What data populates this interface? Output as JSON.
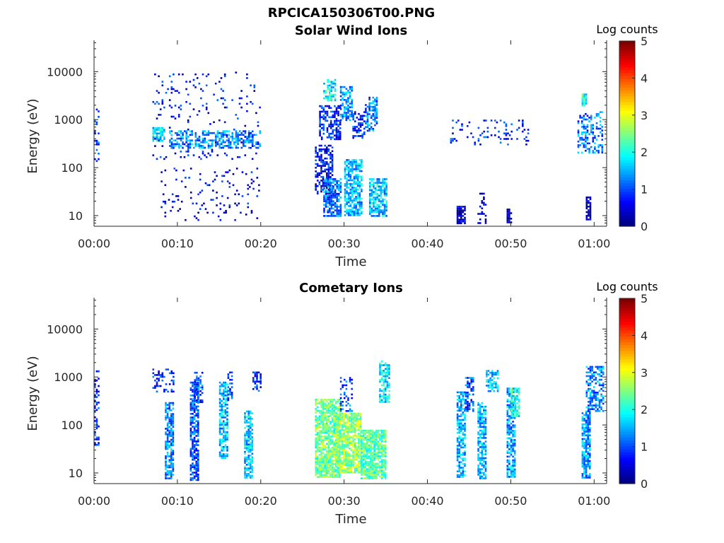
{
  "figure_title": "RPCICA150306T00.PNG",
  "chart_data": [
    {
      "type": "heatmap",
      "title": "Solar Wind Ions",
      "xlabel": "Time",
      "ylabel": "Energy (eV)",
      "x_ticks": [
        "00:00",
        "00:10",
        "00:20",
        "00:30",
        "00:40",
        "00:50",
        "01:00"
      ],
      "x_range_minutes": [
        0,
        61.5
      ],
      "y_ticks": [
        "10",
        "100",
        "1000",
        "10000"
      ],
      "y_scale": "log",
      "y_range_eV": [
        6,
        45000
      ],
      "colorbar": {
        "label": "Log counts",
        "ticks": [
          "0",
          "1",
          "2",
          "3",
          "4",
          "5"
        ],
        "range": [
          0,
          5
        ],
        "colormap": "jet"
      },
      "regions": [
        {
          "t": [
            0,
            0.6
          ],
          "e": [
            90,
            1700
          ],
          "level": 0.8,
          "density": 0.25
        },
        {
          "t": [
            7,
            8.5
          ],
          "e": [
            350,
            700
          ],
          "level": 1.8,
          "density": 0.8
        },
        {
          "t": [
            7,
            20
          ],
          "e": [
            150,
            10000
          ],
          "level": 0.6,
          "density": 0.07
        },
        {
          "t": [
            9,
            20
          ],
          "e": [
            250,
            600
          ],
          "level": 1.3,
          "density": 0.5
        },
        {
          "t": [
            8,
            20
          ],
          "e": [
            8,
            100
          ],
          "level": 0.5,
          "density": 0.06
        },
        {
          "t": [
            26.5,
            28.5
          ],
          "e": [
            30,
            300
          ],
          "level": 0.6,
          "density": 0.55
        },
        {
          "t": [
            27.5,
            29
          ],
          "e": [
            2500,
            7000
          ],
          "level": 1.8,
          "density": 0.6
        },
        {
          "t": [
            27,
            29.5
          ],
          "e": [
            400,
            2000
          ],
          "level": 0.8,
          "density": 0.5
        },
        {
          "t": [
            27.5,
            29.5
          ],
          "e": [
            10,
            60
          ],
          "level": 1.2,
          "density": 0.7
        },
        {
          "t": [
            29.5,
            31
          ],
          "e": [
            1000,
            5000
          ],
          "level": 1.4,
          "density": 0.55
        },
        {
          "t": [
            30,
            32
          ],
          "e": [
            10,
            150
          ],
          "level": 1.5,
          "density": 0.75
        },
        {
          "t": [
            31,
            32.5
          ],
          "e": [
            400,
            1500
          ],
          "level": 0.9,
          "density": 0.5
        },
        {
          "t": [
            32.5,
            34
          ],
          "e": [
            600,
            3000
          ],
          "level": 1.2,
          "density": 0.55
        },
        {
          "t": [
            33,
            35
          ],
          "e": [
            10,
            60
          ],
          "level": 1.6,
          "density": 0.75
        },
        {
          "t": [
            42.5,
            52
          ],
          "e": [
            300,
            1000
          ],
          "level": 0.8,
          "density": 0.12
        },
        {
          "t": [
            43.5,
            44.5
          ],
          "e": [
            7,
            16
          ],
          "level": 0.3,
          "density": 0.9
        },
        {
          "t": [
            46,
            47
          ],
          "e": [
            7,
            30
          ],
          "level": 0.2,
          "density": 0.35
        },
        {
          "t": [
            49.5,
            50
          ],
          "e": [
            7,
            14
          ],
          "level": 0.2,
          "density": 0.9
        },
        {
          "t": [
            58.5,
            59
          ],
          "e": [
            2000,
            3500
          ],
          "level": 2.0,
          "density": 0.9
        },
        {
          "t": [
            58,
            61
          ],
          "e": [
            200,
            1500
          ],
          "level": 1.2,
          "density": 0.4
        },
        {
          "t": [
            59,
            59.5
          ],
          "e": [
            8,
            25
          ],
          "level": 0.2,
          "density": 0.7
        }
      ]
    },
    {
      "type": "heatmap",
      "title": "Cometary Ions",
      "xlabel": "Time",
      "ylabel": "Energy (eV)",
      "x_ticks": [
        "00:00",
        "00:10",
        "00:20",
        "00:30",
        "00:40",
        "00:50",
        "01:00"
      ],
      "x_range_minutes": [
        0,
        61.5
      ],
      "y_ticks": [
        "10",
        "100",
        "1000",
        "10000"
      ],
      "y_scale": "log",
      "y_range_eV": [
        6,
        45000
      ],
      "colorbar": {
        "label": "Log counts",
        "ticks": [
          "0",
          "1",
          "2",
          "3",
          "4",
          "5"
        ],
        "range": [
          0,
          5
        ],
        "colormap": "jet"
      },
      "regions": [
        {
          "t": [
            0,
            0.6
          ],
          "e": [
            40,
            1500
          ],
          "level": 0.7,
          "density": 0.3
        },
        {
          "t": [
            7,
            9.5
          ],
          "e": [
            500,
            1500
          ],
          "level": 0.8,
          "density": 0.3
        },
        {
          "t": [
            8.5,
            9.5
          ],
          "e": [
            8,
            300
          ],
          "level": 1.3,
          "density": 0.7
        },
        {
          "t": [
            11.5,
            12.5
          ],
          "e": [
            7,
            800
          ],
          "level": 1.0,
          "density": 0.75
        },
        {
          "t": [
            12,
            13
          ],
          "e": [
            300,
            1400
          ],
          "level": 1.0,
          "density": 0.5
        },
        {
          "t": [
            15,
            16
          ],
          "e": [
            20,
            800
          ],
          "level": 1.6,
          "density": 0.7
        },
        {
          "t": [
            16,
            16.5
          ],
          "e": [
            300,
            1300
          ],
          "level": 1.0,
          "density": 0.5
        },
        {
          "t": [
            18,
            19
          ],
          "e": [
            8,
            200
          ],
          "level": 1.6,
          "density": 0.75
        },
        {
          "t": [
            19,
            20
          ],
          "e": [
            500,
            1300
          ],
          "level": 0.8,
          "density": 0.5
        },
        {
          "t": [
            26.5,
            29.5
          ],
          "e": [
            8,
            350
          ],
          "level": 2.4,
          "density": 0.85
        },
        {
          "t": [
            29,
            32
          ],
          "e": [
            10,
            180
          ],
          "level": 2.6,
          "density": 0.85
        },
        {
          "t": [
            29.5,
            31
          ],
          "e": [
            200,
            1000
          ],
          "level": 1.0,
          "density": 0.3
        },
        {
          "t": [
            32,
            35
          ],
          "e": [
            8,
            80
          ],
          "level": 2.3,
          "density": 0.85
        },
        {
          "t": [
            34.2,
            35.5
          ],
          "e": [
            300,
            2200
          ],
          "level": 1.8,
          "density": 0.6
        },
        {
          "t": [
            43.5,
            44.5
          ],
          "e": [
            8,
            500
          ],
          "level": 1.5,
          "density": 0.7
        },
        {
          "t": [
            44.5,
            45.5
          ],
          "e": [
            200,
            1000
          ],
          "level": 1.0,
          "density": 0.5
        },
        {
          "t": [
            46,
            47
          ],
          "e": [
            8,
            300
          ],
          "level": 1.5,
          "density": 0.7
        },
        {
          "t": [
            47,
            48.5
          ],
          "e": [
            500,
            1400
          ],
          "level": 1.6,
          "density": 0.6
        },
        {
          "t": [
            49.5,
            50.5
          ],
          "e": [
            8,
            600
          ],
          "level": 1.4,
          "density": 0.7
        },
        {
          "t": [
            50,
            51
          ],
          "e": [
            150,
            600
          ],
          "level": 2.0,
          "density": 0.7
        },
        {
          "t": [
            58.5,
            59.5
          ],
          "e": [
            8,
            200
          ],
          "level": 1.4,
          "density": 0.75
        },
        {
          "t": [
            59,
            61
          ],
          "e": [
            200,
            1700
          ],
          "level": 1.3,
          "density": 0.55
        }
      ]
    }
  ]
}
